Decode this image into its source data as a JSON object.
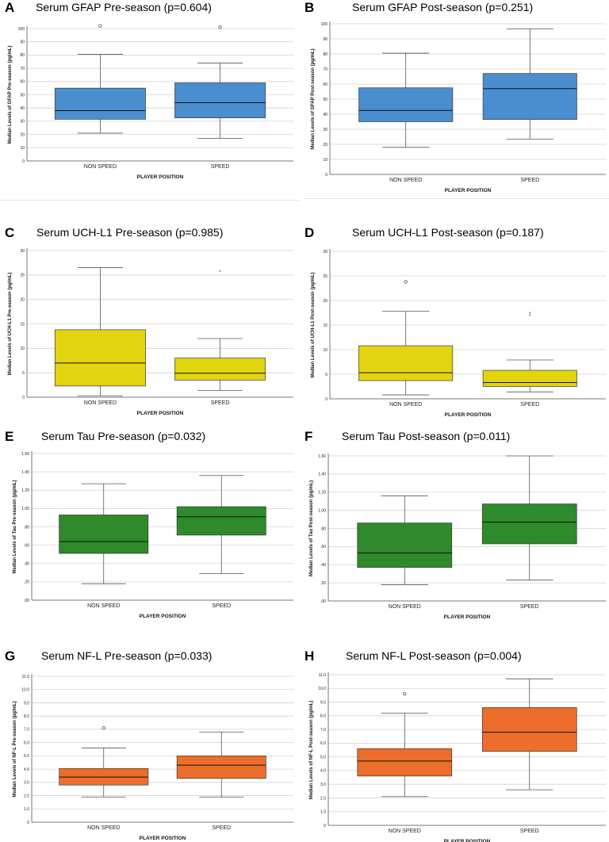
{
  "panels": [
    {
      "letter": "A",
      "title": "Serum GFAP Pre-season (p=0.604)",
      "color": "#4a8ed0",
      "chart_data": {
        "type": "box",
        "title": "Serum GFAP Pre-season (p=0.604)",
        "xlabel": "PLAYER POSITION",
        "ylabel": "Median Levels of GFAP Pre-season (pg/mL)",
        "ylim": [
          0,
          100
        ],
        "yticks": [
          "0",
          "10",
          "20",
          "30",
          "40",
          "50",
          "60",
          "70",
          "80",
          "90",
          "100"
        ],
        "categories": [
          "NON SPEED",
          "SPEED"
        ],
        "boxes": [
          {
            "min": 21,
            "q1": 31.5,
            "median": 38,
            "q3": 55,
            "max": 80.5,
            "outliers": [
              {
                "v": 102,
                "s": "o"
              }
            ]
          },
          {
            "min": 17,
            "q1": 32.5,
            "median": 44,
            "q3": 59,
            "max": 74,
            "outliers": [
              {
                "v": 101,
                "s": "o"
              }
            ]
          }
        ]
      }
    },
    {
      "letter": "B",
      "title": "Serum GFAP Post-season (p=0.251)",
      "color": "#4a8ed0",
      "chart_data": {
        "type": "box",
        "title": "Serum GFAP Post-season (p=0.251)",
        "xlabel": "PLAYER POSITION",
        "ylabel": "Median Levels of GFAP Post-season (pg/mL)",
        "ylim": [
          0,
          100
        ],
        "yticks": [
          "0",
          "10",
          "20",
          "30",
          "40",
          "50",
          "60",
          "70",
          "80",
          "90",
          "100"
        ],
        "categories": [
          "NON SPEED",
          "SPEED"
        ],
        "boxes": [
          {
            "min": 18,
            "q1": 35,
            "median": 42.5,
            "q3": 57.5,
            "max": 80.5,
            "outliers": []
          },
          {
            "min": 23.5,
            "q1": 36.5,
            "median": 57,
            "q3": 67,
            "max": 96.5,
            "outliers": []
          }
        ]
      }
    },
    {
      "letter": "C",
      "title": "Serum UCH-L1 Pre-season (p=0.985)",
      "color": "#e2d40e",
      "chart_data": {
        "type": "box",
        "title": "Serum UCH-L1 Pre-season (p=0.985)",
        "xlabel": "PLAYER POSITION",
        "ylabel": "Median Levels of UCH-L1 Pre-season (pg/mL)",
        "ylim": [
          0,
          30
        ],
        "yticks": [
          "0",
          "5",
          "10",
          "15",
          "20",
          "25",
          "30"
        ],
        "categories": [
          "NON SPEED",
          "SPEED"
        ],
        "boxes": [
          {
            "min": 0.3,
            "q1": 2.3,
            "median": 7,
            "q3": 13.8,
            "max": 26.5,
            "outliers": []
          },
          {
            "min": 1.4,
            "q1": 3.5,
            "median": 4.9,
            "q3": 8.0,
            "max": 12.0,
            "outliers": [
              {
                "v": 25.7,
                "s": "*"
              }
            ]
          }
        ]
      }
    },
    {
      "letter": "D",
      "title": "Serum UCH-L1 Post-season (p=0.187)",
      "color": "#e2d40e",
      "chart_data": {
        "type": "box",
        "title": "Serum UCH-L1 Post-season (p=0.187)",
        "xlabel": "PLAYER POSITION",
        "ylabel": "Median Levels of UCH-L1 Post-season (pg/mL)",
        "ylim": [
          0,
          30
        ],
        "yticks": [
          "0",
          "5",
          "10",
          "15",
          "20",
          "25",
          "30"
        ],
        "categories": [
          "NON SPEED",
          "SPEED"
        ],
        "boxes": [
          {
            "min": 0.8,
            "q1": 3.7,
            "median": 5.3,
            "q3": 10.8,
            "max": 17.8,
            "outliers": [
              {
                "v": 23.8,
                "s": "o"
              }
            ]
          },
          {
            "min": 1.4,
            "q1": 2.5,
            "median": 3.3,
            "q3": 5.8,
            "max": 7.9,
            "outliers": [
              {
                "v": 17.4,
                "s": "*"
              },
              {
                "v": 16.9,
                "s": "*"
              }
            ]
          }
        ]
      }
    },
    {
      "letter": "E",
      "title": "Serum Tau Pre-season (p=0.032)",
      "color": "#2e8a2a",
      "chart_data": {
        "type": "box",
        "title": "Serum Tau Pre-season (p=0.032)",
        "xlabel": "PLAYER POSITION",
        "ylabel": "Median Levels of Tau Pre-season (pg/mL)",
        "ylim": [
          0,
          1.6
        ],
        "yticks": [
          ".00",
          ".20",
          ".40",
          ".60",
          ".80",
          "1.00",
          "1.20",
          "1.40",
          "1.60"
        ],
        "categories": [
          "NON SPEED",
          "SPEED"
        ],
        "boxes": [
          {
            "min": 0.18,
            "q1": 0.51,
            "median": 0.64,
            "q3": 0.93,
            "max": 1.27,
            "outliers": []
          },
          {
            "min": 0.29,
            "q1": 0.71,
            "median": 0.91,
            "q3": 1.02,
            "max": 1.36,
            "outliers": []
          }
        ]
      }
    },
    {
      "letter": "F",
      "title": "Serum Tau Post-season (p=0.011)",
      "color": "#2e8a2a",
      "chart_data": {
        "type": "box",
        "title": "Serum Tau Post-season (p=0.011)",
        "xlabel": "PLAYER POSITION",
        "ylabel": "Median Levels of Tau Post-season (pg/mL)",
        "ylim": [
          0,
          1.6
        ],
        "yticks": [
          ".00",
          ".20",
          ".40",
          ".60",
          ".80",
          "1.00",
          "1.20",
          "1.40",
          "1.60"
        ],
        "categories": [
          "NON SPEED",
          "SPEED"
        ],
        "boxes": [
          {
            "min": 0.18,
            "q1": 0.37,
            "median": 0.53,
            "q3": 0.86,
            "max": 1.16,
            "outliers": []
          },
          {
            "min": 0.23,
            "q1": 0.63,
            "median": 0.87,
            "q3": 1.07,
            "max": 1.6,
            "outliers": []
          }
        ]
      }
    },
    {
      "letter": "G",
      "title": "Serum NF-L Pre-season (p=0.033)",
      "color": "#ec6e2a",
      "chart_data": {
        "type": "box",
        "title": "Serum NF-L Pre-season (p=0.033)",
        "xlabel": "PLAYER POSITION",
        "ylabel": "Median Levels of NF-L Pre-season (pg/mL)",
        "ylim": [
          0,
          11
        ],
        "yticks": [
          "0",
          "1.0",
          "2.0",
          "3.0",
          "4.0",
          "5.0",
          "6.0",
          "7.0",
          "8.0",
          "9.0",
          "10.0",
          "11.0"
        ],
        "categories": [
          "NON SPEED",
          "SPEED"
        ],
        "boxes": [
          {
            "min": 1.9,
            "q1": 2.8,
            "median": 3.4,
            "q3": 4.05,
            "max": 5.6,
            "outliers": [
              {
                "v": 7.1,
                "s": "o"
              }
            ]
          },
          {
            "min": 1.9,
            "q1": 3.3,
            "median": 4.3,
            "q3": 5.0,
            "max": 6.8,
            "outliers": []
          }
        ]
      }
    },
    {
      "letter": "H",
      "title": "Serum NF-L Post-season (p=0.004)",
      "color": "#ec6e2a",
      "chart_data": {
        "type": "box",
        "title": "Serum NF-L Post-season (p=0.004)",
        "xlabel": "PLAYER POSITION",
        "ylabel": "Median Levels of NF-L Post-season (pg/mL)",
        "ylim": [
          0,
          11
        ],
        "yticks": [
          "0",
          "1.0",
          "2.0",
          "3.0",
          "4.0",
          "5.0",
          "6.0",
          "7.0",
          "8.0",
          "9.0",
          "10.0",
          "11.0"
        ],
        "categories": [
          "NON SPEED",
          "SPEED"
        ],
        "boxes": [
          {
            "min": 2.1,
            "q1": 3.6,
            "median": 4.7,
            "q3": 5.6,
            "max": 8.2,
            "outliers": [
              {
                "v": 9.6,
                "s": "o"
              }
            ]
          },
          {
            "min": 2.6,
            "q1": 5.4,
            "median": 6.8,
            "q3": 8.6,
            "max": 10.7,
            "outliers": []
          }
        ]
      }
    }
  ]
}
